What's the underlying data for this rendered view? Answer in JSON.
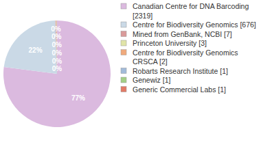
{
  "chart_data": {
    "type": "pie",
    "categories": [
      "Canadian Centre for DNA Barcoding [2319]",
      "Centre for Biodiversity Genomics [676]",
      "Mined from GenBank, NCBI [7]",
      "Princeton University [3]",
      "Centre for Biodiversity Genomics CRSCA [2]",
      "Robarts Research Institute [1]",
      "Genewiz [1]",
      "Generic Commercial Labs [1]"
    ],
    "values": [
      2319,
      676,
      7,
      3,
      2,
      1,
      1,
      1
    ],
    "colors": [
      "#dbbadf",
      "#cad9e6",
      "#d99a9a",
      "#e0e4a8",
      "#f0aa7c",
      "#a2bbd9",
      "#a3cf86",
      "#e27a66"
    ],
    "data_labels": true,
    "value_labels": [
      "77%",
      "22%",
      "0%",
      "0%",
      "0%",
      "0%",
      "0%",
      "0%"
    ],
    "legend": "right"
  }
}
